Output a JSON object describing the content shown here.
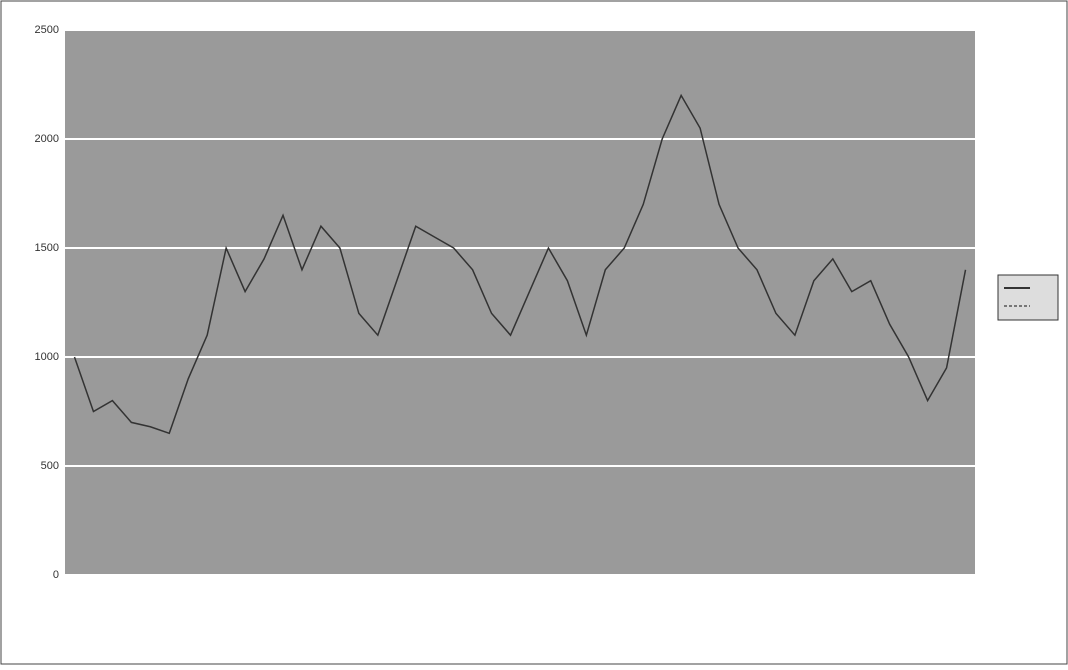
{
  "chart_data": {
    "type": "line",
    "categories": [
      null,
      null,
      null,
      null,
      null,
      null,
      null,
      null,
      null,
      null,
      null,
      null,
      null,
      null,
      null,
      null,
      null,
      null,
      null,
      null,
      null,
      null,
      null,
      null,
      null,
      null,
      null,
      null,
      null,
      null,
      null,
      null,
      null,
      null,
      null,
      null,
      null,
      null,
      null,
      null,
      null,
      null,
      null,
      null,
      null,
      null,
      null,
      null
    ],
    "series": [
      {
        "color": "#333333",
        "values": [
          1000,
          750,
          800,
          700,
          680,
          650,
          900,
          1100,
          1500,
          1300,
          1450,
          1650,
          1400,
          1600,
          1500,
          1200,
          1100,
          1350,
          1600,
          1550,
          1500,
          1400,
          1200,
          1100,
          1300,
          1500,
          1350,
          1100,
          1400,
          1500,
          1700,
          2000,
          2200,
          2050,
          1700,
          1500,
          1400,
          1200,
          1100,
          1350,
          1450,
          1300,
          1350,
          1150,
          1000,
          800,
          950,
          1400
        ]
      }
    ],
    "ylim": [
      0,
      2500
    ],
    "yticks": [
      0,
      500,
      1000,
      1500,
      2000,
      2500
    ],
    "grid": true
  }
}
